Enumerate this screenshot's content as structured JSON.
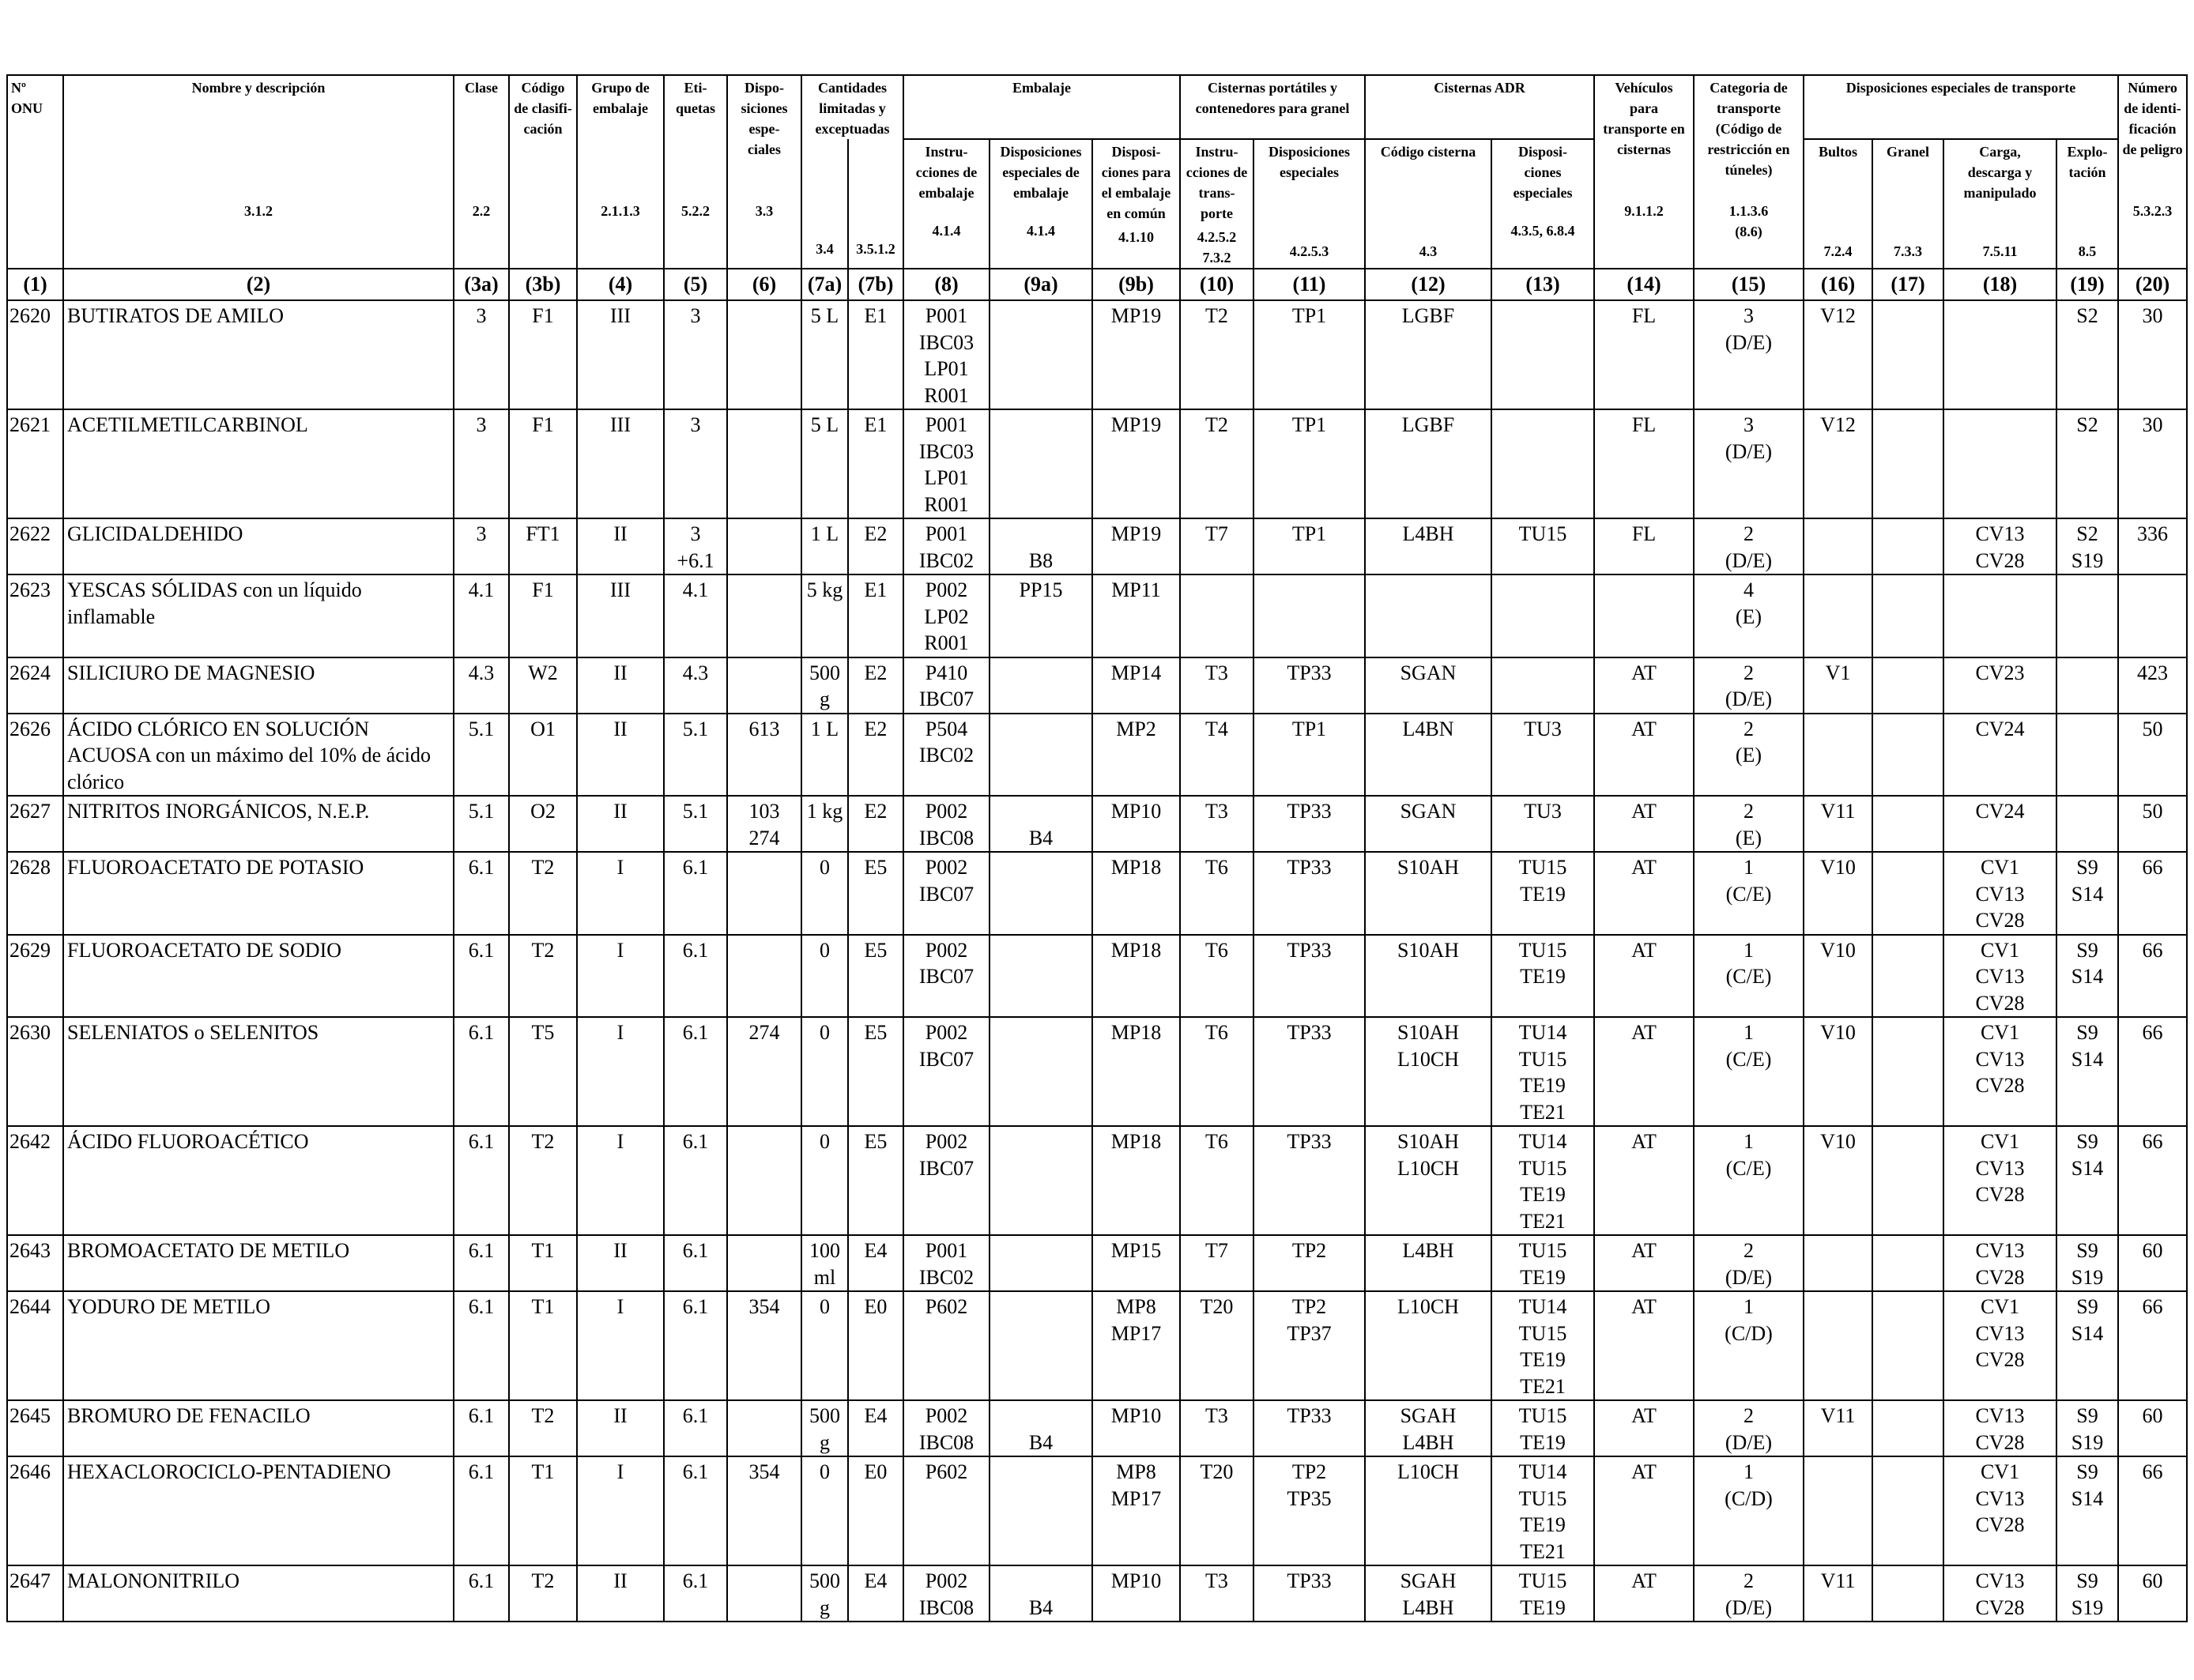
{
  "headers": {
    "onu": [
      "Nº",
      "ONU"
    ],
    "nombre": [
      "Nombre y descripción"
    ],
    "clase": [
      "Clase"
    ],
    "codigo": [
      "Código",
      "de clasifi-",
      "cación"
    ],
    "grupo": [
      "Grupo de",
      "embalaje"
    ],
    "etiquetas": [
      "Eti-",
      "quetas"
    ],
    "disposiciones": [
      "Dispo-",
      "siciones",
      "espe-",
      "ciales"
    ],
    "cantidades": [
      "Cantidades",
      "limitadas y",
      "exceptuadas"
    ],
    "embalaje": [
      "Embalaje"
    ],
    "instrucciones_emb": [
      "Instru-",
      "cciones de",
      "embalaje"
    ],
    "disp_esp_emb": [
      "Disposiciones",
      "especiales de",
      "embalaje"
    ],
    "disp_comun": [
      "Disposi-",
      "ciones para",
      "el embalaje",
      "en común"
    ],
    "cisternas_port": [
      "Cisternas portátiles y",
      "contenedores para granel"
    ],
    "instr_trans": [
      "Instru-",
      "cciones de",
      "trans-",
      "porte"
    ],
    "disp_esp_cist": [
      "Disposiciones",
      "especiales"
    ],
    "cisternas_adr": [
      "Cisternas ADR"
    ],
    "codigo_cisterna": [
      "Código cisterna"
    ],
    "disp_esp_adr": [
      "Disposi-",
      "ciones",
      "especiales"
    ],
    "vehiculos": [
      "Vehículos",
      "para",
      "transporte en",
      "cisternas"
    ],
    "categoria": [
      "Categoria de",
      "transporte",
      "(Código de",
      "restricción en",
      "túneles)"
    ],
    "disp_transporte": [
      "Disposiciones especiales de transporte"
    ],
    "bultos": [
      "Bultos"
    ],
    "granel": [
      "Granel"
    ],
    "carga": [
      "Carga,",
      "descarga y",
      "manipulado"
    ],
    "explotacion": [
      "Explo-",
      "tación"
    ],
    "numero": [
      "Número",
      "de identi-",
      "ficación",
      "de peligro"
    ]
  },
  "refs": {
    "nombre": "3.1.2",
    "clase": "2.2",
    "grupo": "2.1.1.3",
    "etiquetas": "5.2.2",
    "disposiciones": "3.3",
    "c7a": "3.4",
    "c7b": "3.5.1.2",
    "c8": "4.1.4",
    "c9a": "4.1.4",
    "c9b": "4.1.10",
    "c10": [
      "4.2.5.2",
      "7.3.2"
    ],
    "c11": "4.2.5.3",
    "c12": "4.3",
    "c13": "4.3.5, 6.8.4",
    "c14": "9.1.1.2",
    "c15": [
      "1.1.3.6",
      "(8.6)"
    ],
    "c16": "7.2.4",
    "c17": "7.3.3",
    "c18": "7.5.11",
    "c19": "8.5",
    "c20": "5.3.2.3"
  },
  "colnums": [
    "(1)",
    "(2)",
    "(3a)",
    "(3b)",
    "(4)",
    "(5)",
    "(6)",
    "(7a)",
    "(7b)",
    "(8)",
    "(9a)",
    "(9b)",
    "(10)",
    "(11)",
    "(12)",
    "(13)",
    "(14)",
    "(15)",
    "(16)",
    "(17)",
    "(18)",
    "(19)",
    "(20)"
  ],
  "rows": [
    [
      "2620",
      [
        "BUTIRATOS DE AMILO"
      ],
      [
        "3"
      ],
      [
        "F1"
      ],
      [
        "III"
      ],
      [
        "3"
      ],
      [],
      [
        "5 L"
      ],
      [
        "E1"
      ],
      [
        "P001",
        "IBC03",
        "LP01",
        "R001"
      ],
      [],
      [
        "MP19"
      ],
      [
        "T2"
      ],
      [
        "TP1"
      ],
      [
        "LGBF"
      ],
      [],
      [
        "FL"
      ],
      [
        "3",
        "(D/E)"
      ],
      [
        "V12"
      ],
      [],
      [],
      [
        "S2"
      ],
      [
        "30"
      ]
    ],
    [
      "2621",
      [
        "ACETILMETILCARBINOL"
      ],
      [
        "3"
      ],
      [
        "F1"
      ],
      [
        "III"
      ],
      [
        "3"
      ],
      [],
      [
        "5 L"
      ],
      [
        "E1"
      ],
      [
        "P001",
        "IBC03",
        "LP01",
        "R001"
      ],
      [],
      [
        "MP19"
      ],
      [
        "T2"
      ],
      [
        "TP1"
      ],
      [
        "LGBF"
      ],
      [],
      [
        "FL"
      ],
      [
        "3",
        "(D/E)"
      ],
      [
        "V12"
      ],
      [],
      [],
      [
        "S2"
      ],
      [
        "30"
      ]
    ],
    [
      "2622",
      [
        "GLICIDALDEHIDO"
      ],
      [
        "3"
      ],
      [
        "FT1"
      ],
      [
        "II"
      ],
      [
        "3",
        "+6.1"
      ],
      [],
      [
        "1 L"
      ],
      [
        "E2"
      ],
      [
        "P001",
        "IBC02"
      ],
      [
        "",
        "B8"
      ],
      [
        "MP19"
      ],
      [
        "T7"
      ],
      [
        "TP1"
      ],
      [
        "L4BH"
      ],
      [
        "TU15"
      ],
      [
        "FL"
      ],
      [
        "2",
        "(D/E)"
      ],
      [],
      [],
      [
        "CV13",
        "CV28"
      ],
      [
        "S2",
        "S19"
      ],
      [
        "336"
      ]
    ],
    [
      "2623",
      [
        "YESCAS SÓLIDAS con un líquido inflamable"
      ],
      [
        "4.1"
      ],
      [
        "F1"
      ],
      [
        "III"
      ],
      [
        "4.1"
      ],
      [],
      [
        "5 kg"
      ],
      [
        "E1"
      ],
      [
        "P002",
        "LP02",
        "R001"
      ],
      [
        "PP15"
      ],
      [
        "MP11"
      ],
      [],
      [],
      [],
      [],
      [],
      [
        "4",
        "(E)"
      ],
      [],
      [],
      [],
      [],
      []
    ],
    [
      "2624",
      [
        "SILICIURO DE MAGNESIO"
      ],
      [
        "4.3"
      ],
      [
        "W2"
      ],
      [
        "II"
      ],
      [
        "4.3"
      ],
      [],
      [
        "500",
        "g"
      ],
      [
        "E2"
      ],
      [
        "P410",
        "IBC07"
      ],
      [],
      [
        "MP14"
      ],
      [
        "T3"
      ],
      [
        "TP33"
      ],
      [
        "SGAN"
      ],
      [],
      [
        "AT"
      ],
      [
        "2",
        "(D/E)"
      ],
      [
        "V1"
      ],
      [],
      [
        "CV23"
      ],
      [],
      [
        "423"
      ]
    ],
    [
      "2626",
      [
        "ÁCIDO CLÓRICO EN SOLUCIÓN ACUOSA con un máximo del 10% de ácido clórico"
      ],
      [
        "5.1"
      ],
      [
        "O1"
      ],
      [
        "II"
      ],
      [
        "5.1"
      ],
      [
        "613"
      ],
      [
        "1 L"
      ],
      [
        "E2"
      ],
      [
        "P504",
        "IBC02"
      ],
      [],
      [
        "MP2"
      ],
      [
        "T4"
      ],
      [
        "TP1"
      ],
      [
        "L4BN"
      ],
      [
        "TU3"
      ],
      [
        "AT"
      ],
      [
        "2",
        "(E)"
      ],
      [],
      [],
      [
        "CV24"
      ],
      [],
      [
        "50"
      ]
    ],
    [
      "2627",
      [
        "NITRITOS INORGÁNICOS, N.E.P."
      ],
      [
        "5.1"
      ],
      [
        "O2"
      ],
      [
        "II"
      ],
      [
        "5.1"
      ],
      [
        "103",
        "274"
      ],
      [
        "1 kg"
      ],
      [
        "E2"
      ],
      [
        "P002",
        "IBC08"
      ],
      [
        "",
        "B4"
      ],
      [
        "MP10"
      ],
      [
        "T3"
      ],
      [
        "TP33"
      ],
      [
        "SGAN"
      ],
      [
        "TU3"
      ],
      [
        "AT"
      ],
      [
        "2",
        "(E)"
      ],
      [
        "V11"
      ],
      [],
      [
        "CV24"
      ],
      [],
      [
        "50"
      ]
    ],
    [
      "2628",
      [
        "FLUOROACETATO DE POTASIO"
      ],
      [
        "6.1"
      ],
      [
        "T2"
      ],
      [
        "I"
      ],
      [
        "6.1"
      ],
      [],
      [
        "0"
      ],
      [
        "E5"
      ],
      [
        "P002",
        "IBC07"
      ],
      [],
      [
        "MP18"
      ],
      [
        "T6"
      ],
      [
        "TP33"
      ],
      [
        "S10AH"
      ],
      [
        "TU15",
        "TE19"
      ],
      [
        "AT"
      ],
      [
        "1",
        "(C/E)"
      ],
      [
        "V10"
      ],
      [],
      [
        "CV1",
        "CV13",
        "CV28"
      ],
      [
        "S9",
        "S14"
      ],
      [
        "66"
      ]
    ],
    [
      "2629",
      [
        "FLUOROACETATO DE SODIO"
      ],
      [
        "6.1"
      ],
      [
        "T2"
      ],
      [
        "I"
      ],
      [
        "6.1"
      ],
      [],
      [
        "0"
      ],
      [
        "E5"
      ],
      [
        "P002",
        "IBC07"
      ],
      [],
      [
        "MP18"
      ],
      [
        "T6"
      ],
      [
        "TP33"
      ],
      [
        "S10AH"
      ],
      [
        "TU15",
        "TE19"
      ],
      [
        "AT"
      ],
      [
        "1",
        "(C/E)"
      ],
      [
        "V10"
      ],
      [],
      [
        "CV1",
        "CV13",
        "CV28"
      ],
      [
        "S9",
        "S14"
      ],
      [
        "66"
      ]
    ],
    [
      "2630",
      [
        "SELENIATOS o SELENITOS"
      ],
      [
        "6.1"
      ],
      [
        "T5"
      ],
      [
        "I"
      ],
      [
        "6.1"
      ],
      [
        "274"
      ],
      [
        "0"
      ],
      [
        "E5"
      ],
      [
        "P002",
        "IBC07"
      ],
      [],
      [
        "MP18"
      ],
      [
        "T6"
      ],
      [
        "TP33"
      ],
      [
        "S10AH",
        "L10CH"
      ],
      [
        "TU14",
        "TU15",
        "TE19",
        "TE21"
      ],
      [
        "AT"
      ],
      [
        "1",
        "(C/E)"
      ],
      [
        "V10"
      ],
      [],
      [
        "CV1",
        "CV13",
        "CV28"
      ],
      [
        "S9",
        "S14"
      ],
      [
        "66"
      ]
    ],
    [
      "2642",
      [
        "ÁCIDO FLUOROACÉTICO"
      ],
      [
        "6.1"
      ],
      [
        "T2"
      ],
      [
        "I"
      ],
      [
        "6.1"
      ],
      [],
      [
        "0"
      ],
      [
        "E5"
      ],
      [
        "P002",
        "IBC07"
      ],
      [],
      [
        "MP18"
      ],
      [
        "T6"
      ],
      [
        "TP33"
      ],
      [
        "S10AH",
        "L10CH"
      ],
      [
        "TU14",
        "TU15",
        "TE19",
        "TE21"
      ],
      [
        "AT"
      ],
      [
        "1",
        "(C/E)"
      ],
      [
        "V10"
      ],
      [],
      [
        "CV1",
        "CV13",
        "CV28"
      ],
      [
        "S9",
        "S14"
      ],
      [
        "66"
      ]
    ],
    [
      "2643",
      [
        "BROMOACETATO DE METILO"
      ],
      [
        "6.1"
      ],
      [
        "T1"
      ],
      [
        "II"
      ],
      [
        "6.1"
      ],
      [],
      [
        "100",
        "ml"
      ],
      [
        "E4"
      ],
      [
        "P001",
        "IBC02"
      ],
      [],
      [
        "MP15"
      ],
      [
        "T7"
      ],
      [
        "TP2"
      ],
      [
        "L4BH"
      ],
      [
        "TU15",
        "TE19"
      ],
      [
        "AT"
      ],
      [
        "2",
        "(D/E)"
      ],
      [],
      [],
      [
        "CV13",
        "CV28"
      ],
      [
        "S9",
        "S19"
      ],
      [
        "60"
      ]
    ],
    [
      "2644",
      [
        "YODURO DE METILO"
      ],
      [
        "6.1"
      ],
      [
        "T1"
      ],
      [
        "I"
      ],
      [
        "6.1"
      ],
      [
        "354"
      ],
      [
        "0"
      ],
      [
        "E0"
      ],
      [
        "P602"
      ],
      [],
      [
        "MP8",
        "MP17"
      ],
      [
        "T20"
      ],
      [
        "TP2",
        "TP37"
      ],
      [
        "L10CH"
      ],
      [
        "TU14",
        "TU15",
        "TE19",
        "TE21"
      ],
      [
        "AT"
      ],
      [
        "1",
        "(C/D)"
      ],
      [],
      [],
      [
        "CV1",
        "CV13",
        "CV28"
      ],
      [
        "S9",
        "S14"
      ],
      [
        "66"
      ]
    ],
    [
      "2645",
      [
        "BROMURO DE FENACILO"
      ],
      [
        "6.1"
      ],
      [
        "T2"
      ],
      [
        "II"
      ],
      [
        "6.1"
      ],
      [],
      [
        "500",
        "g"
      ],
      [
        "E4"
      ],
      [
        "P002",
        "IBC08"
      ],
      [
        "",
        "B4"
      ],
      [
        "MP10"
      ],
      [
        "T3"
      ],
      [
        "TP33"
      ],
      [
        "SGAH",
        "L4BH"
      ],
      [
        "TU15",
        "TE19"
      ],
      [
        "AT"
      ],
      [
        "2",
        "(D/E)"
      ],
      [
        "V11"
      ],
      [],
      [
        "CV13",
        "CV28"
      ],
      [
        "S9",
        "S19"
      ],
      [
        "60"
      ]
    ],
    [
      "2646",
      [
        "HEXACLOROCICLO-PENTADIENO"
      ],
      [
        "6.1"
      ],
      [
        "T1"
      ],
      [
        "I"
      ],
      [
        "6.1"
      ],
      [
        "354"
      ],
      [
        "0"
      ],
      [
        "E0"
      ],
      [
        "P602"
      ],
      [],
      [
        "MP8",
        "MP17"
      ],
      [
        "T20"
      ],
      [
        "TP2",
        "TP35"
      ],
      [
        "L10CH"
      ],
      [
        "TU14",
        "TU15",
        "TE19",
        "TE21"
      ],
      [
        "AT"
      ],
      [
        "1",
        "(C/D)"
      ],
      [],
      [],
      [
        "CV1",
        "CV13",
        "CV28"
      ],
      [
        "S9",
        "S14"
      ],
      [
        "66"
      ]
    ],
    [
      "2647",
      [
        "MALONONITRILO"
      ],
      [
        "6.1"
      ],
      [
        "T2"
      ],
      [
        "II"
      ],
      [
        "6.1"
      ],
      [],
      [
        "500",
        "g"
      ],
      [
        "E4"
      ],
      [
        "P002",
        "IBC08"
      ],
      [
        "",
        "B4"
      ],
      [
        "MP10"
      ],
      [
        "T3"
      ],
      [
        "TP33"
      ],
      [
        "SGAH",
        "L4BH"
      ],
      [
        "TU15",
        "TE19"
      ],
      [
        "AT"
      ],
      [
        "2",
        "(D/E)"
      ],
      [
        "V11"
      ],
      [],
      [
        "CV13",
        "CV28"
      ],
      [
        "S9",
        "S19"
      ],
      [
        "60"
      ]
    ]
  ]
}
